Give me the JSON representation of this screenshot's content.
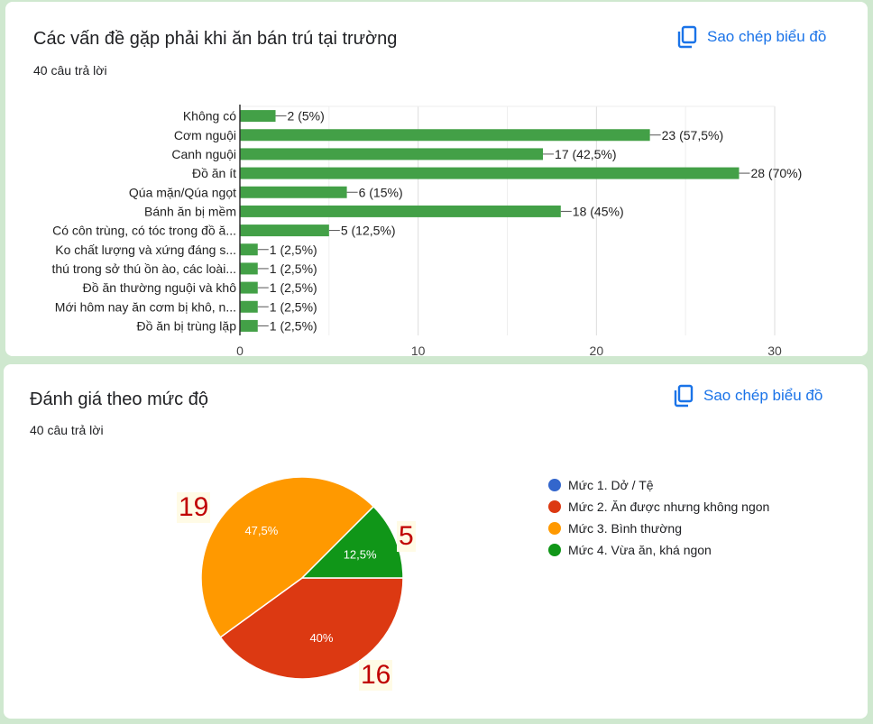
{
  "copy_label": "Sao chép biểu đồ",
  "copy_icon": "copy-icon",
  "accent_color": "#1a73e8",
  "chart_data": [
    {
      "type": "bar",
      "orientation": "horizontal",
      "title": "Các vấn đề gặp phải khi ăn bán trú tại trường",
      "subtitle": "40 câu trả lời",
      "categories": [
        "Không có",
        "Cơm nguội",
        "Canh nguội",
        "Đồ ăn ít",
        "Qúa mặn/Qúa ngọt",
        "Bánh ăn bị mềm",
        "Có côn trùng, có tóc trong đồ ă...",
        "Ko chất lượng và xứng đáng s...",
        "thú trong sở thú ồn ào, các loài...",
        "Đồ ăn thường nguội và khô",
        "Mới hôm nay ăn cơm bị khô, n...",
        "Đồ ăn bị trùng lặp"
      ],
      "values": [
        2,
        23,
        17,
        28,
        6,
        18,
        5,
        1,
        1,
        1,
        1,
        1
      ],
      "data_labels": [
        "2 (5%)",
        "23 (57,5%)",
        "17 (42,5%)",
        "28 (70%)",
        "6 (15%)",
        "18 (45%)",
        "5 (12,5%)",
        "1 (2,5%)",
        "1 (2,5%)",
        "1 (2,5%)",
        "1 (2,5%)",
        "1 (2,5%)"
      ],
      "xlim": [
        0,
        30
      ],
      "xticks": [
        "0",
        "10",
        "20",
        "30"
      ],
      "grid": true,
      "color": "#43a047"
    },
    {
      "type": "pie",
      "title": "Đánh giá theo mức độ",
      "subtitle": "40 câu trả lời",
      "legend_position": "right",
      "slices": [
        {
          "name": "Mức 1. Dở / Tệ",
          "value": 0,
          "label": "",
          "color": "#3366cc"
        },
        {
          "name": "Mức 2. Ăn được nhưng không ngon",
          "value": 16,
          "label": "40%",
          "color": "#dc3912"
        },
        {
          "name": "Mức 3. Bình thường",
          "value": 19,
          "label": "47,5%",
          "color": "#ff9900"
        },
        {
          "name": "Mức 4. Vừa ăn, khá ngon",
          "value": 5,
          "label": "12,5%",
          "color": "#109618"
        }
      ],
      "annotations": [
        "19",
        "5",
        "16"
      ]
    }
  ]
}
